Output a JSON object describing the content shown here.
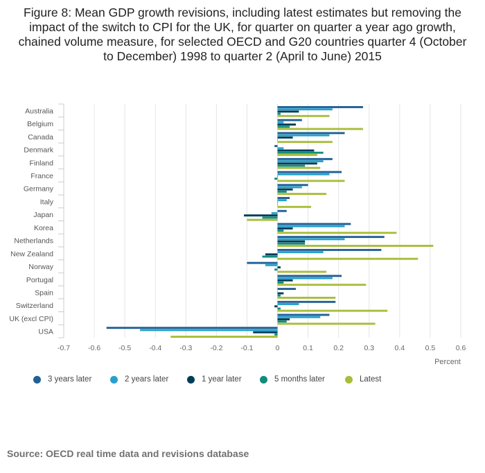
{
  "title": "Figure 8: Mean GDP growth revisions, including latest estimates but removing the impact of the switch to CPI for the UK, for quarter on quarter a year ago growth, chained volume measure, for selected OECD and G20 countries quarter 4 (October to December) 1998 to quarter 2 (April to June) 2015",
  "source": "Source: OECD real time data and revisions database",
  "chart_data": {
    "type": "bar",
    "orientation": "horizontal",
    "categories": [
      "Australia",
      "Belgium",
      "Canada",
      "Denmark",
      "Finland",
      "France",
      "Germany",
      "Italy",
      "Japan",
      "Korea",
      "Netherlands",
      "New Zealand",
      "Norway",
      "Portugal",
      "Spain",
      "Switzerland",
      "UK (excl CPI)",
      "USA"
    ],
    "series": [
      {
        "name": "3 years later",
        "color": "#206095",
        "values": [
          0.28,
          0.08,
          0.22,
          -0.01,
          0.18,
          0.21,
          0.1,
          0.04,
          0.03,
          0.24,
          0.35,
          0.34,
          -0.1,
          0.21,
          0.06,
          0.19,
          0.17,
          -0.56
        ]
      },
      {
        "name": "2 years later",
        "color": "#27A0CC",
        "values": [
          0.18,
          0.02,
          0.17,
          0.02,
          0.15,
          0.17,
          0.08,
          0.03,
          -0.02,
          0.22,
          0.22,
          0.15,
          -0.04,
          0.18,
          0.0,
          0.07,
          0.14,
          -0.45
        ]
      },
      {
        "name": "1 year later",
        "color": "#003C57",
        "values": [
          0.07,
          0.06,
          0.05,
          0.12,
          0.13,
          0.0,
          0.05,
          0.0,
          -0.11,
          0.05,
          0.09,
          -0.04,
          0.01,
          0.05,
          0.02,
          -0.01,
          0.04,
          -0.08
        ]
      },
      {
        "name": "5 months later",
        "color": "#118C7B",
        "values": [
          0.01,
          0.04,
          0.0,
          0.15,
          0.09,
          -0.01,
          0.03,
          0.0,
          -0.05,
          0.02,
          0.09,
          -0.05,
          -0.01,
          0.02,
          0.01,
          0.01,
          0.03,
          -0.01
        ]
      },
      {
        "name": "Latest",
        "color": "#A8BD3A",
        "values": [
          0.17,
          0.28,
          0.18,
          0.13,
          0.14,
          0.22,
          0.16,
          0.11,
          -0.1,
          0.39,
          0.51,
          0.46,
          0.16,
          0.29,
          0.19,
          0.36,
          0.32,
          -0.35
        ]
      }
    ],
    "xlabel": "Percent",
    "xlim": [
      -0.7,
      0.6
    ],
    "xticks": [
      "-0.7",
      "-0.6",
      "-0.5",
      "-0.4",
      "-0.3",
      "-0.2",
      "-0.1",
      "0",
      "0.1",
      "0.2",
      "0.3",
      "0.4",
      "0.5",
      "0.6"
    ],
    "grid": true,
    "legend_position": "bottom"
  }
}
